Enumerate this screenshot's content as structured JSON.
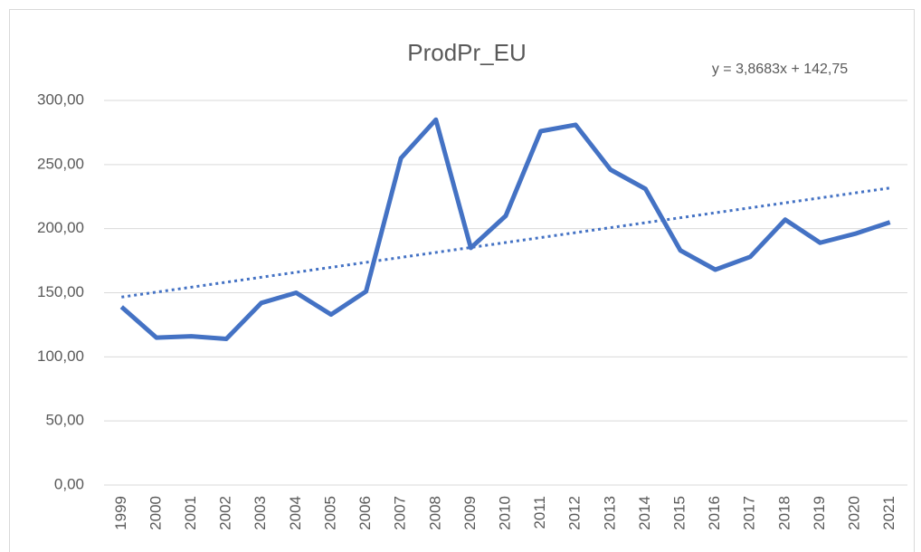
{
  "chart_data": {
    "type": "line",
    "title": "ProdPr_EU",
    "categories": [
      "1999",
      "2000",
      "2001",
      "2002",
      "2003",
      "2004",
      "2005",
      "2006",
      "2007",
      "2008",
      "2009",
      "2010",
      "2011",
      "2012",
      "2013",
      "2014",
      "2015",
      "2016",
      "2017",
      "2018",
      "2019",
      "2020",
      "2021"
    ],
    "series": [
      {
        "color": "#4472c4",
        "values": [
          139,
          115,
          116,
          114,
          142,
          150,
          133,
          151,
          255,
          285,
          185,
          210,
          276,
          281,
          246,
          231,
          183,
          168,
          178,
          207,
          189,
          196,
          205
        ]
      }
    ],
    "trendline": {
      "slope": 3.8683,
      "intercept": 142.75,
      "label": "y = 3,8683x + 142,75",
      "color": "#4472c4"
    },
    "ylim": [
      0,
      300
    ],
    "yticks": [
      {
        "value": 0,
        "label": "0,00"
      },
      {
        "value": 50,
        "label": "50,00"
      },
      {
        "value": 100,
        "label": "100,00"
      },
      {
        "value": 150,
        "label": "150,00"
      },
      {
        "value": 200,
        "label": "200,00"
      },
      {
        "value": 250,
        "label": "250,00"
      },
      {
        "value": 300,
        "label": "300,00"
      }
    ],
    "grid": true
  }
}
